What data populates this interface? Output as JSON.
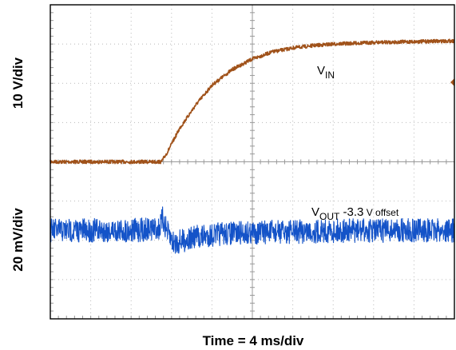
{
  "chart_data": {
    "type": "line",
    "title": "",
    "xlabel": "Time = 4 ms/div",
    "ylabel_upper": "10 V/div",
    "ylabel_lower": "20 mV/div",
    "grid": true,
    "x_divisions": 10,
    "y_divisions": 8,
    "xlim_div": [
      0,
      10
    ],
    "series": [
      {
        "trace_label": {
          "main": "V",
          "sub": "IN"
        },
        "color": "#A0521A",
        "x_div": [
          0,
          1,
          2,
          2.75,
          2.9,
          3.2,
          3.6,
          4.0,
          4.5,
          5.0,
          5.5,
          6.0,
          6.5,
          7.0,
          8.0,
          9.0,
          10.0
        ],
        "y_div": [
          4.0,
          4.0,
          4.0,
          4.0,
          4.25,
          4.85,
          5.45,
          5.95,
          6.35,
          6.62,
          6.8,
          6.9,
          6.96,
          7.0,
          7.04,
          7.06,
          7.08
        ]
      },
      {
        "trace_label": {
          "main": "V",
          "sub": "OUT",
          "suffix": " -3.3",
          "small": " V offset"
        },
        "color": "#1453C8",
        "x_div": [
          0,
          1,
          2,
          2.7,
          2.78,
          2.9,
          3.05,
          3.3,
          3.6,
          4.0,
          4.5,
          5.0,
          6.0,
          7.0,
          8.0,
          9.0,
          10.0
        ],
        "y_div": [
          2.25,
          2.25,
          2.25,
          2.3,
          2.55,
          2.2,
          1.92,
          2.0,
          2.08,
          2.14,
          2.18,
          2.2,
          2.22,
          2.24,
          2.25,
          2.25,
          2.25
        ]
      }
    ]
  }
}
